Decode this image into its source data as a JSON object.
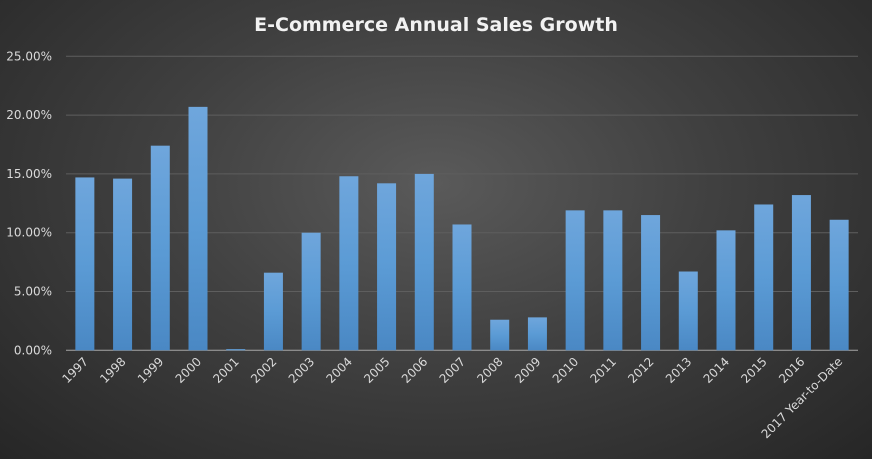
{
  "chart_data": {
    "type": "bar",
    "title": "E-Commerce Annual Sales Growth",
    "xlabel": "",
    "ylabel": "",
    "ylim": [
      0,
      25
    ],
    "yticks": [
      "0.00%",
      "5.00%",
      "10.00%",
      "15.00%",
      "20.00%",
      "25.00%"
    ],
    "grid": true,
    "categories": [
      "1997",
      "1998",
      "1999",
      "2000",
      "2001",
      "2002",
      "2003",
      "2004",
      "2005",
      "2006",
      "2007",
      "2008",
      "2009",
      "2010",
      "2011",
      "2012",
      "2013",
      "2014",
      "2015",
      "2016",
      "2017 Year-to-Date"
    ],
    "values": [
      14.7,
      14.6,
      17.4,
      20.7,
      0.1,
      6.6,
      10.0,
      14.8,
      14.2,
      15.0,
      10.7,
      2.6,
      2.8,
      11.9,
      11.9,
      11.5,
      6.7,
      10.2,
      12.4,
      13.2,
      11.1
    ],
    "bar_color": "#5b9bd5"
  }
}
